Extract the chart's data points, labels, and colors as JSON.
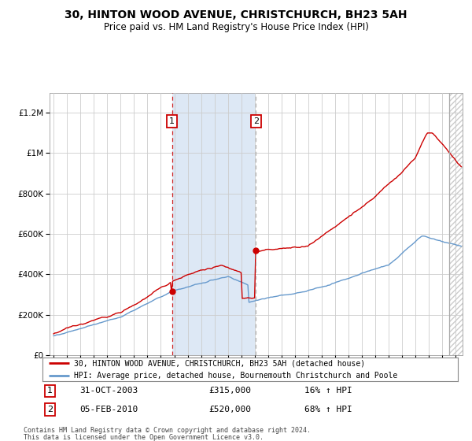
{
  "title": "30, HINTON WOOD AVENUE, CHRISTCHURCH, BH23 5AH",
  "subtitle": "Price paid vs. HM Land Registry's House Price Index (HPI)",
  "title_fontsize": 10,
  "subtitle_fontsize": 8.5,
  "legend_line1": "30, HINTON WOOD AVENUE, CHRISTCHURCH, BH23 5AH (detached house)",
  "legend_line2": "HPI: Average price, detached house, Bournemouth Christchurch and Poole",
  "annotation1_date": "31-OCT-2003",
  "annotation1_price": "£315,000",
  "annotation1_hpi": "16% ↑ HPI",
  "annotation2_date": "05-FEB-2010",
  "annotation2_price": "£520,000",
  "annotation2_hpi": "68% ↑ HPI",
  "footer1": "Contains HM Land Registry data © Crown copyright and database right 2024.",
  "footer2": "This data is licensed under the Open Government Licence v3.0.",
  "red_color": "#cc0000",
  "blue_color": "#6699cc",
  "shade_color": "#dde8f5",
  "hatch_color": "#cccccc",
  "grid_color": "#cccccc",
  "background_color": "#ffffff",
  "ylim": [
    0,
    1300000
  ],
  "ytick_values": [
    0,
    200000,
    400000,
    600000,
    800000,
    1000000,
    1200000
  ],
  "ytick_labels": [
    "£0",
    "£200K",
    "£400K",
    "£600K",
    "£800K",
    "£1M",
    "£1.2M"
  ],
  "xlim_start": 1994.7,
  "xlim_end": 2025.5,
  "marker1_x": 2003.83,
  "marker1_y": 315000,
  "marker2_x": 2010.09,
  "marker2_y": 520000,
  "vline1_x": 2003.83,
  "vline2_x": 2010.09,
  "shade_x1": 2003.83,
  "shade_x2": 2010.09,
  "hatch_x": 2024.5
}
